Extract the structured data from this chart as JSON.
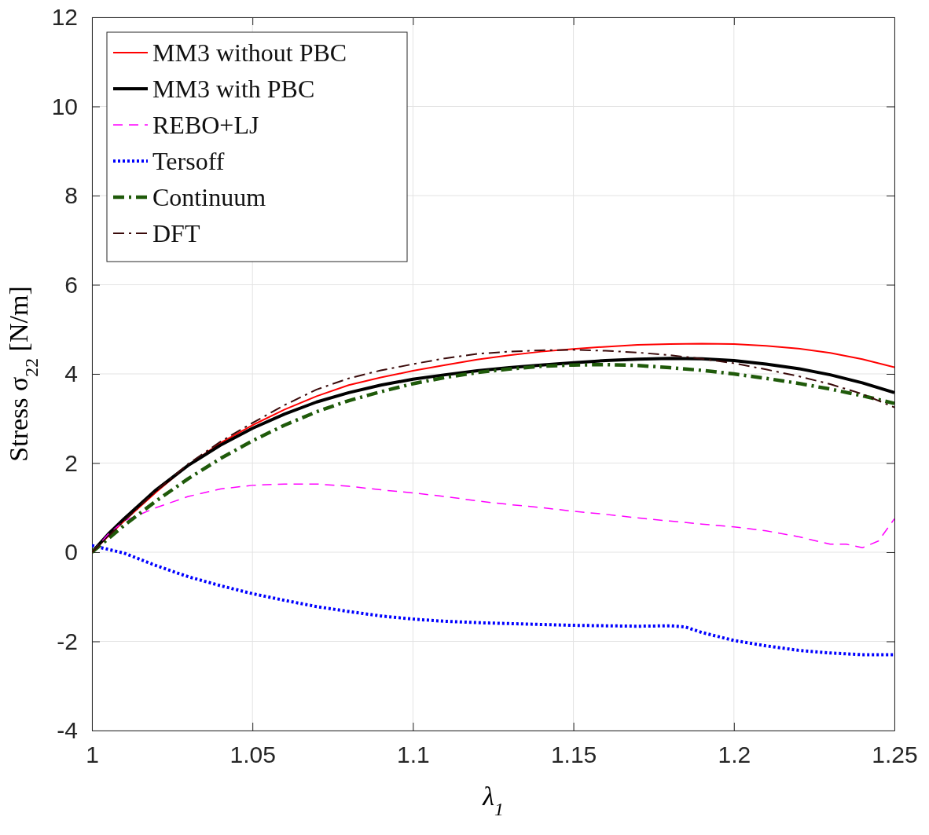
{
  "chart_data": {
    "type": "line",
    "xlabel": "λ$_{1}$",
    "ylabel": "Stress σ$_{22}$ [N/m]",
    "xlim": [
      1,
      1.25
    ],
    "xticks": [
      1,
      1.05,
      1.1,
      1.15,
      1.2,
      1.25
    ],
    "ylim": [
      -4,
      12
    ],
    "yticks": [
      -4,
      -2,
      0,
      2,
      4,
      6,
      8,
      10,
      12
    ],
    "grid": true,
    "legend": "top left",
    "series": [
      {
        "name": "MM3 without PBC",
        "color": "#ff0000",
        "line_style": "solid",
        "x": [
          1,
          1.005,
          1.01,
          1.02,
          1.03,
          1.04,
          1.05,
          1.06,
          1.07,
          1.08,
          1.09,
          1.1,
          1.11,
          1.12,
          1.13,
          1.14,
          1.15,
          1.16,
          1.17,
          1.18,
          1.19,
          1.2,
          1.21,
          1.22,
          1.23,
          1.24,
          1.25
        ],
        "values": [
          0,
          0.35,
          0.7,
          1.35,
          1.95,
          2.45,
          2.85,
          3.2,
          3.5,
          3.75,
          3.92,
          4.07,
          4.2,
          4.32,
          4.42,
          4.5,
          4.56,
          4.61,
          4.65,
          4.67,
          4.68,
          4.67,
          4.63,
          4.57,
          4.47,
          4.33,
          4.15
        ]
      },
      {
        "name": "MM3 with PBC",
        "color": "#000000",
        "line_style": "solid",
        "x": [
          1,
          1.005,
          1.01,
          1.02,
          1.03,
          1.04,
          1.05,
          1.06,
          1.07,
          1.08,
          1.09,
          1.1,
          1.11,
          1.12,
          1.13,
          1.14,
          1.15,
          1.16,
          1.17,
          1.18,
          1.19,
          1.2,
          1.21,
          1.22,
          1.23,
          1.24,
          1.25
        ],
        "values": [
          0,
          0.4,
          0.75,
          1.4,
          1.95,
          2.4,
          2.78,
          3.1,
          3.37,
          3.58,
          3.75,
          3.88,
          3.98,
          4.07,
          4.14,
          4.2,
          4.25,
          4.3,
          4.33,
          4.35,
          4.34,
          4.3,
          4.22,
          4.12,
          3.98,
          3.8,
          3.58
        ]
      },
      {
        "name": "REBO+LJ",
        "color": "#ff00ff",
        "line_style": "dashed",
        "x": [
          1,
          1.005,
          1.01,
          1.02,
          1.03,
          1.04,
          1.05,
          1.06,
          1.07,
          1.08,
          1.09,
          1.1,
          1.11,
          1.12,
          1.13,
          1.14,
          1.15,
          1.16,
          1.17,
          1.18,
          1.19,
          1.2,
          1.21,
          1.22,
          1.23,
          1.235,
          1.24,
          1.245,
          1.25
        ],
        "values": [
          0,
          0.4,
          0.7,
          1.0,
          1.25,
          1.42,
          1.5,
          1.53,
          1.53,
          1.48,
          1.4,
          1.33,
          1.25,
          1.15,
          1.07,
          1.0,
          0.92,
          0.85,
          0.77,
          0.7,
          0.63,
          0.57,
          0.48,
          0.35,
          0.18,
          0.18,
          0.1,
          0.25,
          0.75
        ]
      },
      {
        "name": "Tersoff",
        "color": "#0000ff",
        "line_style": "dotted",
        "x": [
          1,
          1.01,
          1.02,
          1.03,
          1.04,
          1.05,
          1.06,
          1.07,
          1.08,
          1.09,
          1.1,
          1.11,
          1.12,
          1.13,
          1.14,
          1.15,
          1.16,
          1.17,
          1.18,
          1.185,
          1.19,
          1.2,
          1.21,
          1.22,
          1.23,
          1.24,
          1.25
        ],
        "values": [
          0.15,
          -0.02,
          -0.3,
          -0.55,
          -0.75,
          -0.93,
          -1.08,
          -1.22,
          -1.33,
          -1.43,
          -1.5,
          -1.55,
          -1.58,
          -1.6,
          -1.62,
          -1.64,
          -1.65,
          -1.66,
          -1.65,
          -1.68,
          -1.8,
          -1.98,
          -2.1,
          -2.2,
          -2.26,
          -2.3,
          -2.3
        ]
      },
      {
        "name": "Continuum",
        "color": "#1f5a0a",
        "line_style": "dashdot",
        "x": [
          1,
          1.01,
          1.02,
          1.03,
          1.04,
          1.05,
          1.06,
          1.07,
          1.08,
          1.09,
          1.1,
          1.11,
          1.12,
          1.13,
          1.14,
          1.15,
          1.16,
          1.17,
          1.18,
          1.19,
          1.2,
          1.21,
          1.22,
          1.23,
          1.24,
          1.25
        ],
        "values": [
          0,
          0.6,
          1.15,
          1.65,
          2.1,
          2.5,
          2.85,
          3.15,
          3.4,
          3.6,
          3.78,
          3.92,
          4.03,
          4.11,
          4.17,
          4.2,
          4.21,
          4.19,
          4.14,
          4.08,
          4.0,
          3.9,
          3.79,
          3.66,
          3.51,
          3.34
        ]
      },
      {
        "name": "DFT",
        "color": "#3a0a0a",
        "line_style": "dashdot",
        "x": [
          1,
          1.01,
          1.02,
          1.03,
          1.04,
          1.05,
          1.06,
          1.07,
          1.08,
          1.09,
          1.1,
          1.11,
          1.12,
          1.13,
          1.14,
          1.15,
          1.16,
          1.17,
          1.18,
          1.19,
          1.2,
          1.21,
          1.22,
          1.23,
          1.24,
          1.25
        ],
        "values": [
          0,
          0.7,
          1.38,
          1.98,
          2.48,
          2.9,
          3.3,
          3.65,
          3.9,
          4.08,
          4.22,
          4.35,
          4.45,
          4.5,
          4.53,
          4.54,
          4.52,
          4.48,
          4.42,
          4.34,
          4.24,
          4.1,
          3.95,
          3.77,
          3.55,
          3.25
        ]
      }
    ]
  }
}
